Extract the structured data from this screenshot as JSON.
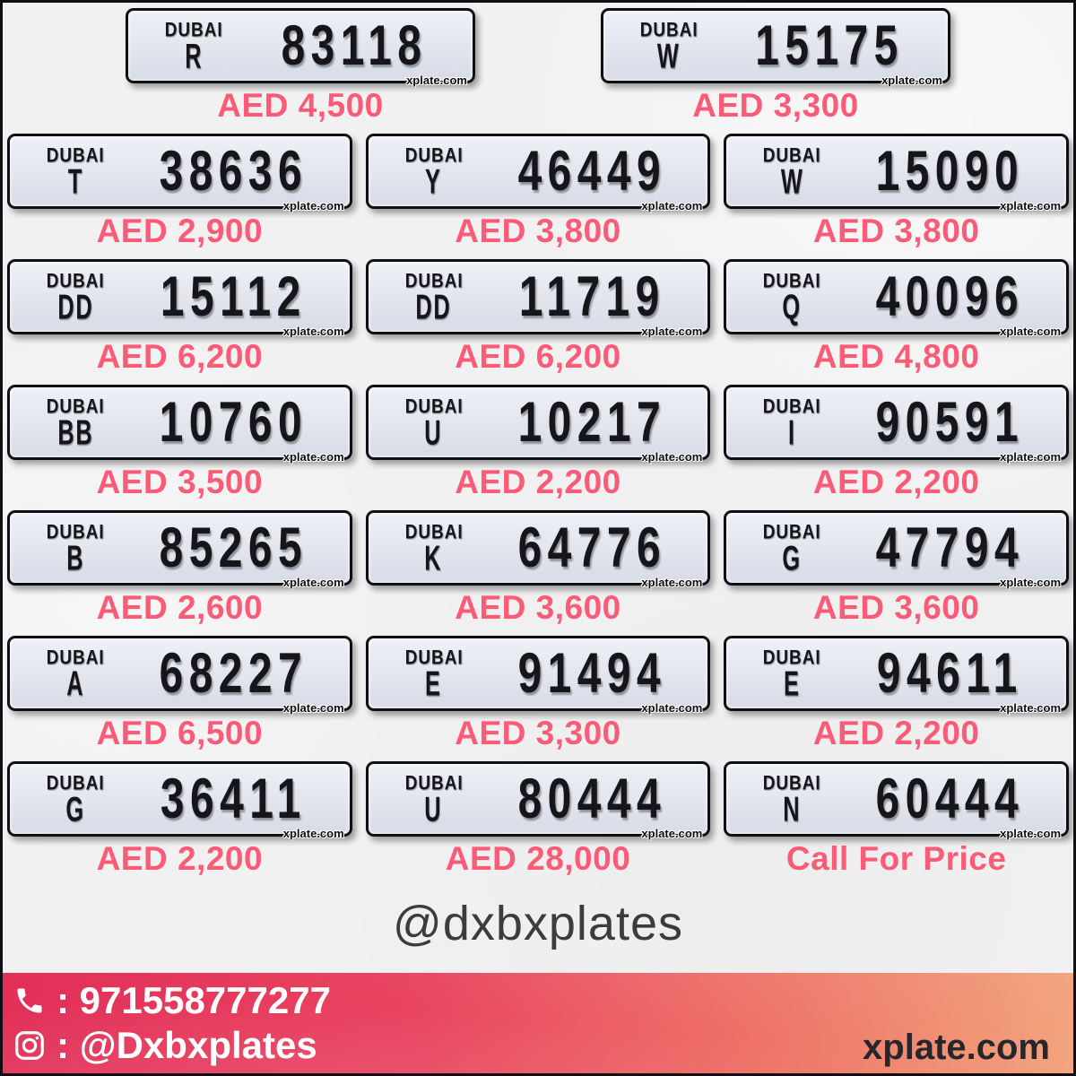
{
  "page": {
    "background": "#f1f1f2",
    "price_color": "#fa5b76",
    "handle": "@dxbxplates"
  },
  "brand": {
    "plate_logo": "DUBAI",
    "watermark": "xplate.com"
  },
  "rows": [
    {
      "plates": [
        {
          "code": "R",
          "number": "83118",
          "price": "AED 4,500"
        },
        {
          "code": "W",
          "number": "15175",
          "price": "AED 3,300"
        }
      ]
    },
    {
      "plates": [
        {
          "code": "T",
          "number": "38636",
          "price": "AED 2,900"
        },
        {
          "code": "Y",
          "number": "46449",
          "price": "AED 3,800"
        },
        {
          "code": "W",
          "number": "15090",
          "price": "AED 3,800"
        }
      ]
    },
    {
      "plates": [
        {
          "code": "DD",
          "number": "15112",
          "price": "AED 6,200"
        },
        {
          "code": "DD",
          "number": "11719",
          "price": "AED 6,200"
        },
        {
          "code": "Q",
          "number": "40096",
          "price": "AED 4,800"
        }
      ]
    },
    {
      "plates": [
        {
          "code": "BB",
          "number": "10760",
          "price": "AED 3,500"
        },
        {
          "code": "U",
          "number": "10217",
          "price": "AED 2,200"
        },
        {
          "code": "I",
          "number": "90591",
          "price": "AED 2,200"
        }
      ]
    },
    {
      "plates": [
        {
          "code": "B",
          "number": "85265",
          "price": "AED 2,600"
        },
        {
          "code": "K",
          "number": "64776",
          "price": "AED 3,600"
        },
        {
          "code": "G",
          "number": "47794",
          "price": "AED 3,600"
        }
      ]
    },
    {
      "plates": [
        {
          "code": "A",
          "number": "68227",
          "price": "AED 6,500"
        },
        {
          "code": "E",
          "number": "91494",
          "price": "AED 3,300"
        },
        {
          "code": "E",
          "number": "94611",
          "price": "AED 2,200"
        }
      ]
    },
    {
      "plates": [
        {
          "code": "G",
          "number": "36411",
          "price": "AED 2,200"
        },
        {
          "code": "U",
          "number": "80444",
          "price": "AED 28,000"
        },
        {
          "code": "N",
          "number": "60444",
          "price": "Call For Price"
        }
      ]
    }
  ],
  "footer": {
    "phone": ": 971558777277",
    "instagram": ": @Dxbxplates",
    "site": "xplate.com",
    "gradient_left": "#e22f58",
    "gradient_right": "#f2a57e"
  }
}
